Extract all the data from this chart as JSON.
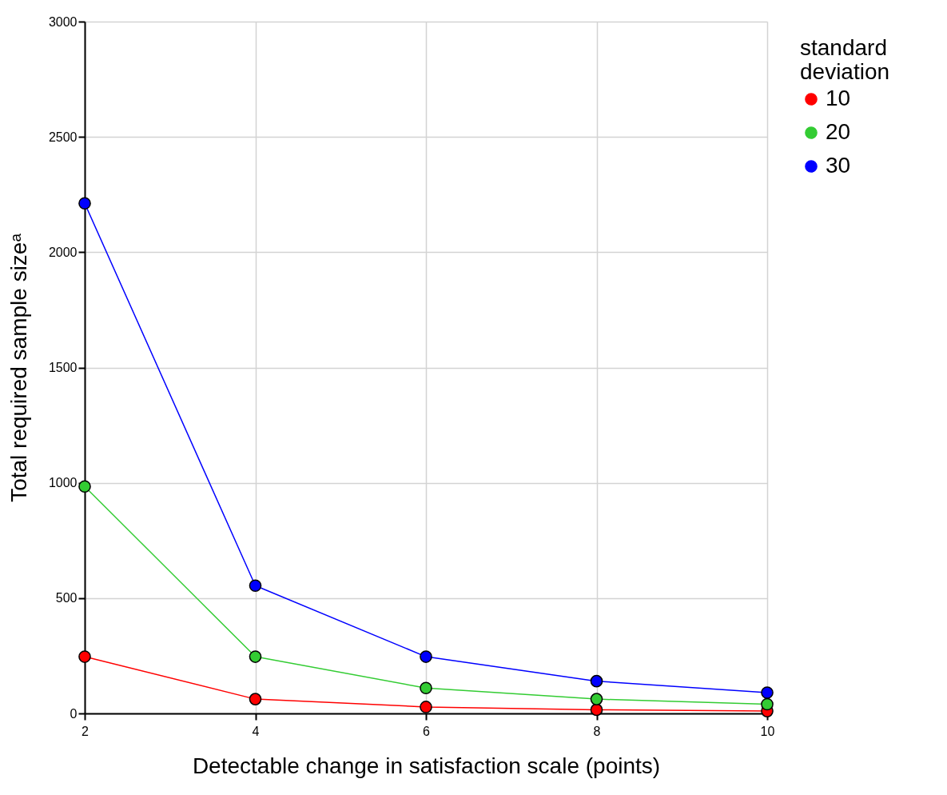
{
  "chart_data": {
    "type": "line",
    "xlabel": "Detectable change in satisfaction scale (points)",
    "ylabel": "Total required sample sizeᵃ",
    "legend_title": "standard deviation",
    "x": [
      2,
      4,
      6,
      8,
      10
    ],
    "series": [
      {
        "name": "10",
        "color": "#ff0000",
        "values": [
          246,
          62,
          28,
          16,
          10
        ]
      },
      {
        "name": "20",
        "color": "#33cc33",
        "values": [
          984,
          246,
          110,
          62,
          40
        ]
      },
      {
        "name": "30",
        "color": "#0000ff",
        "values": [
          2212,
          554,
          246,
          140,
          90
        ]
      }
    ],
    "xlim": [
      2,
      10
    ],
    "xticks": [
      2,
      4,
      6,
      8,
      10
    ],
    "ylim": [
      0,
      3000
    ],
    "yticks": [
      0,
      500,
      1000,
      1500,
      2000,
      2500,
      3000
    ],
    "grid": true,
    "legend": "right",
    "marker": "circle",
    "line_style": "solid"
  }
}
